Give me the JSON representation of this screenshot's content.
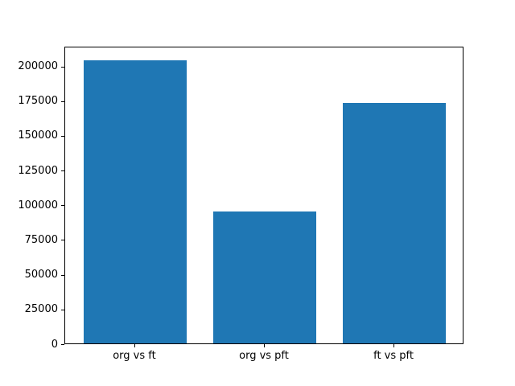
{
  "chart_data": {
    "type": "bar",
    "categories": [
      "org vs ft",
      "org vs pft",
      "ft vs pft"
    ],
    "values": [
      204000,
      95000,
      173000
    ],
    "title": "",
    "xlabel": "",
    "ylabel": "",
    "ylim": [
      0,
      214200
    ],
    "yticks": [
      0,
      25000,
      50000,
      75000,
      100000,
      125000,
      150000,
      175000,
      200000
    ],
    "ytick_labels": [
      "0",
      "25000",
      "50000",
      "75000",
      "100000",
      "125000",
      "150000",
      "175000",
      "200000"
    ],
    "bar_color": "#1f77b4",
    "bar_width_data_units": 0.8,
    "grid": false,
    "legend": null,
    "background_color": "#ffffff",
    "spine_color": "#000000"
  }
}
